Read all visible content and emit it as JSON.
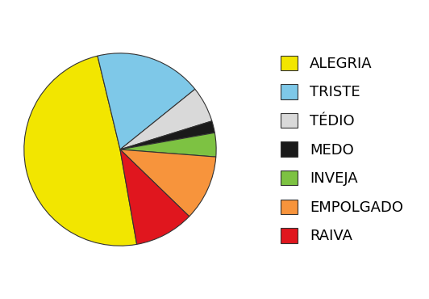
{
  "chart_data": {
    "type": "pie",
    "categories": [
      "ALEGRIA",
      "TRISTE",
      "TÉDIO",
      "MEDO",
      "INVEJA",
      "EMPOLGADO",
      "RAIVA"
    ],
    "values": [
      49,
      18,
      6,
      2,
      4,
      11,
      10
    ],
    "colors": [
      "#f2e600",
      "#7ec8e8",
      "#d9d9d9",
      "#1a1a1a",
      "#7dc242",
      "#f7943c",
      "#e0161e"
    ],
    "legend": "center right"
  }
}
